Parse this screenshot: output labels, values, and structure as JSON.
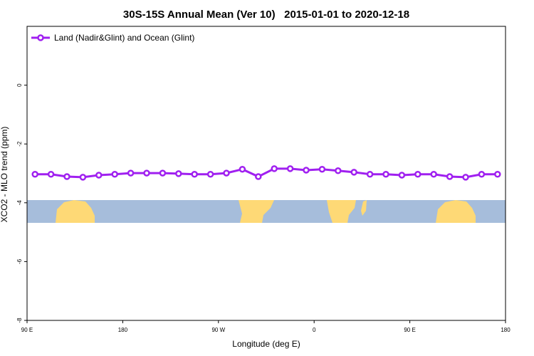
{
  "chart_data": {
    "type": "line",
    "title": "30S-15S Annual Mean (Ver 10)   2015-01-01 to 2020-12-18",
    "x_label": "Longitude (deg E)",
    "y_label": "XCO2 - MLO trend (ppm)",
    "xlim": [
      90,
      540
    ],
    "xticks": [
      {
        "value": 90,
        "label": "90 E"
      },
      {
        "value": 180,
        "label": "180"
      },
      {
        "value": 270,
        "label": "90 W"
      },
      {
        "value": 360,
        "label": "0"
      },
      {
        "value": 450,
        "label": "90 E"
      },
      {
        "value": 540,
        "label": "180"
      }
    ],
    "ylim": [
      -8,
      2
    ],
    "yticks": [
      0,
      -2,
      -4,
      -6,
      -8
    ],
    "legend": "top-left",
    "x": [
      97.5,
      112.5,
      127.5,
      142.5,
      157.5,
      172.5,
      187.5,
      202.5,
      217.5,
      232.5,
      247.5,
      262.5,
      277.5,
      292.5,
      307.5,
      322.5,
      337.5,
      352.5,
      367.5,
      382.5,
      397.5,
      412.5,
      427.5,
      442.5,
      457.5,
      472.5,
      487.5,
      502.5,
      517.5,
      532.5
    ],
    "series": [
      {
        "name": "Land (Nadir&Glint) and Ocean (Glint)",
        "color": "#a020f0",
        "values": [
          -3.03,
          -3.03,
          -3.11,
          -3.13,
          -3.06,
          -3.03,
          -2.99,
          -2.99,
          -2.99,
          -3.01,
          -3.03,
          -3.03,
          -2.99,
          -2.86,
          -3.11,
          -2.84,
          -2.84,
          -2.89,
          -2.86,
          -2.91,
          -2.96,
          -3.03,
          -3.03,
          -3.06,
          -3.03,
          -3.03,
          -3.11,
          -3.13,
          -3.03,
          -3.03
        ]
      }
    ]
  }
}
